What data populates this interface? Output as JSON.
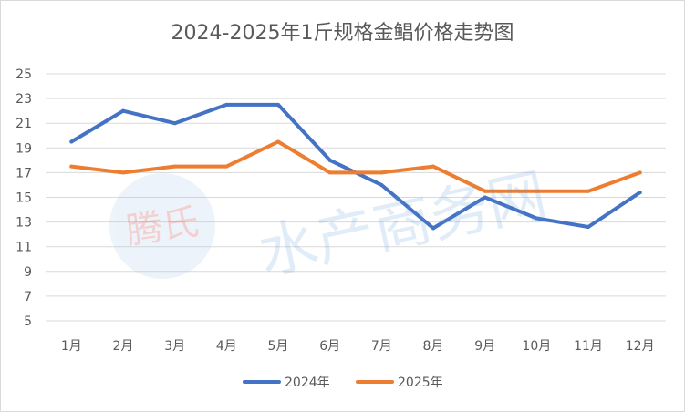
{
  "chart_data": {
    "type": "line",
    "title": "2024-2025年1斤规格金鲳价格走势图",
    "categories": [
      "1月",
      "2月",
      "3月",
      "4月",
      "5月",
      "6月",
      "7月",
      "8月",
      "9月",
      "10月",
      "11月",
      "12月"
    ],
    "series": [
      {
        "name": "2024年",
        "color": "#4472c4",
        "values": [
          19.5,
          22.0,
          21.0,
          22.5,
          22.5,
          18.0,
          16.0,
          12.5,
          15.0,
          13.3,
          12.6,
          15.4
        ]
      },
      {
        "name": "2025年",
        "color": "#ed7d31",
        "values": [
          17.5,
          17.0,
          17.5,
          17.5,
          19.5,
          17.0,
          17.0,
          17.5,
          15.5,
          15.5,
          15.5,
          17.0
        ]
      }
    ],
    "y_ticks": [
      "25",
      "23",
      "21",
      "19",
      "17",
      "15",
      "13",
      "11",
      "9",
      "7",
      "5"
    ],
    "ylim": [
      5,
      25
    ],
    "grid": true,
    "legend": "bottom",
    "watermark": "腾氏 水产商务网"
  }
}
